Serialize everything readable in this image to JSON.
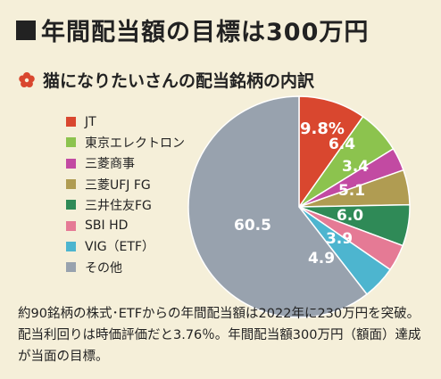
{
  "title": "年間配当額の目標は300万円",
  "subtitle": "猫になりたいさんの配当銘柄の内訳",
  "footnote": "約90銘柄の株式･ETFからの年間配当額は2022年に230万円を突破。配当利回りは時価評価だと3.76％。年間配当額300万円（額面）達成が当面の目標。",
  "chart_data": {
    "type": "pie",
    "title": "猫になりたいさんの配当銘柄の内訳",
    "unit": "%",
    "slices": [
      {
        "name": "JT",
        "value": 9.8,
        "label": "9.8%",
        "color": "#d9472f"
      },
      {
        "name": "東京エレクトロン",
        "value": 6.4,
        "label": "6.4",
        "color": "#8cc34e"
      },
      {
        "name": "三菱商事",
        "value": 3.4,
        "label": "3.4",
        "color": "#c24aa2"
      },
      {
        "name": "三菱UFJ FG",
        "value": 5.1,
        "label": "5.1",
        "color": "#b09c52"
      },
      {
        "name": "三井住友FG",
        "value": 6.0,
        "label": "6.0",
        "color": "#2f8a57"
      },
      {
        "name": "SBI HD",
        "value": 3.9,
        "label": "3.9",
        "color": "#e57a95"
      },
      {
        "name": "VIG（ETF）",
        "value": 4.9,
        "label": "4.9",
        "color": "#4db5cf"
      },
      {
        "name": "その他",
        "value": 60.5,
        "label": "60.5",
        "color": "#98a2ae"
      }
    ],
    "start": "12 o'clock",
    "direction": "clockwise",
    "legend_placement": "left"
  }
}
